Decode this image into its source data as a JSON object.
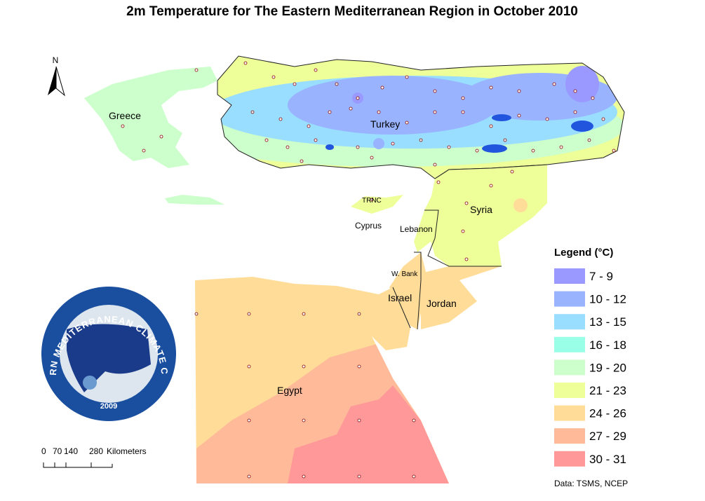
{
  "title": "2m Temperature  for The Eastern Mediterranean Region in October 2010",
  "north": "N",
  "places": [
    "Greece",
    "Turkey",
    "TRNC",
    "Cyprus",
    "Lebanon",
    "Syria",
    "W. Bank",
    "Israel",
    "Jordan",
    "Egypt"
  ],
  "legend": {
    "title": "Legend (°C)",
    "classes": [
      {
        "label": "7 - 9",
        "color": "#9999ff"
      },
      {
        "label": "10 - 12",
        "color": "#99b3ff"
      },
      {
        "label": "13 - 15",
        "color": "#99ddff"
      },
      {
        "label": "16 - 18",
        "color": "#99ffe6"
      },
      {
        "label": "19 - 20",
        "color": "#ccffcc"
      },
      {
        "label": "21 - 23",
        "color": "#eeff99"
      },
      {
        "label": "24 - 26",
        "color": "#ffdd99"
      },
      {
        "label": "27 - 29",
        "color": "#ffbb99"
      },
      {
        "label": "30 - 31",
        "color": "#ff9999"
      }
    ]
  },
  "scale_bar": {
    "ticks": [
      "0",
      "70",
      "140",
      "280"
    ],
    "unit": "Kilometers"
  },
  "logo": {
    "text": "EASTERN MEDITERRANEAN CLIMATE CENTRE",
    "year": "2009"
  },
  "source": "Data:  TSMS, NCEP"
}
